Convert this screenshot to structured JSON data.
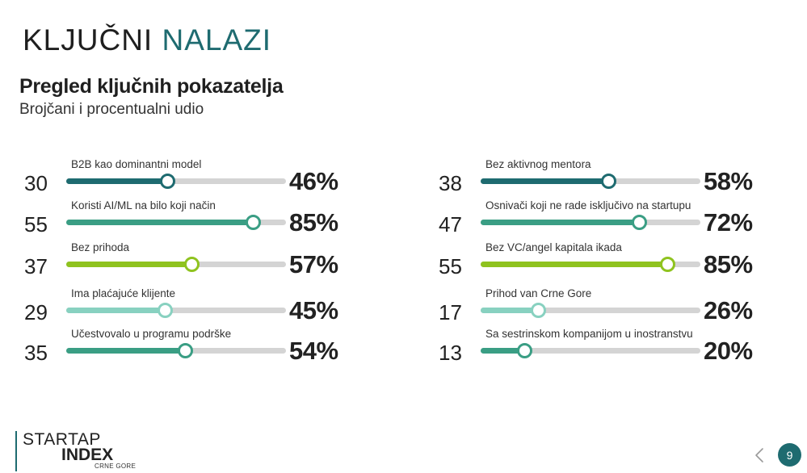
{
  "slide": {
    "title_main": "KLJUČNI",
    "title_accent": "NALAZI",
    "subtitle": "Pregled ključnih pokazatelja",
    "caption": "Brojčani i procentualni udio"
  },
  "colors": {
    "dark_teal": "#1e6b70",
    "teal_green": "#3a9e84",
    "lime": "#8fc31f",
    "mint": "#88d1c0",
    "track": "#d4d4d4"
  },
  "metrics_left": [
    {
      "count": "30",
      "label": "B2B kao dominantni model",
      "percent_label": "46%",
      "value": 46,
      "color": "#1e6b70"
    },
    {
      "count": "55",
      "label": "Koristi AI/ML na bilo koji način",
      "percent_label": "85%",
      "value": 85,
      "color": "#3a9e84"
    },
    {
      "count": "37",
      "label": "Bez prihoda",
      "percent_label": "57%",
      "value": 57,
      "color": "#8fc31f"
    },
    {
      "count": "29",
      "label": "Ima plaćajuće klijente",
      "percent_label": "45%",
      "value": 45,
      "color": "#88d1c0"
    },
    {
      "count": "35",
      "label": "Učestvovalo u programu podrške",
      "percent_label": "54%",
      "value": 54,
      "color": "#3a9e84"
    }
  ],
  "metrics_right": [
    {
      "count": "38",
      "label": "Bez aktivnog mentora",
      "percent_label": "58%",
      "value": 58,
      "color": "#1e6b70"
    },
    {
      "count": "47",
      "label": "Osnivači koji ne rade isključivo na startupu",
      "percent_label": "72%",
      "value": 72,
      "color": "#3a9e84"
    },
    {
      "count": "55",
      "label": "Bez VC/angel kapitala ikada",
      "percent_label": "85%",
      "value": 85,
      "color": "#8fc31f"
    },
    {
      "count": "17",
      "label": "Prihod van Crne Gore",
      "percent_label": "26%",
      "value": 26,
      "color": "#88d1c0"
    },
    {
      "count": "13",
      "label": "Sa sestrinskom kompanijom u inostranstvu",
      "percent_label": "20%",
      "value": 20,
      "color": "#3a9e84"
    }
  ],
  "logo": {
    "line1": "STARTAP",
    "line2": "INDEX",
    "line3": "CRNE GORE"
  },
  "nav": {
    "prev_icon": "chevron-left-icon",
    "page_number": "9"
  }
}
